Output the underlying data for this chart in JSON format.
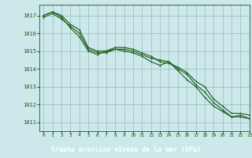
{
  "title": "Graphe pression niveau de la mer (hPa)",
  "background_color": "#cce8ea",
  "plot_bg_color": "#cce8ea",
  "label_bg_color": "#2d6e2d",
  "label_text_color": "#ffffff",
  "grid_color": "#99bbbb",
  "line_color": "#1a5c1a",
  "xlim": [
    -0.5,
    23
  ],
  "ylim": [
    1010.5,
    1017.6
  ],
  "yticks": [
    1011,
    1012,
    1013,
    1014,
    1015,
    1016,
    1017
  ],
  "xticks": [
    0,
    1,
    2,
    3,
    4,
    5,
    6,
    7,
    8,
    9,
    10,
    11,
    12,
    13,
    14,
    15,
    16,
    17,
    18,
    19,
    20,
    21,
    22,
    23
  ],
  "series1": [
    1017.0,
    1017.2,
    1017.0,
    1016.5,
    1016.2,
    1015.2,
    1015.0,
    1015.0,
    1015.2,
    1015.2,
    1015.1,
    1014.9,
    1014.7,
    1014.4,
    1014.3,
    1014.1,
    1013.8,
    1013.3,
    1013.0,
    1012.3,
    1011.9,
    1011.5,
    1011.5,
    1011.4
  ],
  "series2": [
    1016.9,
    1017.1,
    1016.8,
    1016.4,
    1016.0,
    1015.1,
    1014.9,
    1014.9,
    1015.1,
    1015.1,
    1015.0,
    1014.8,
    1014.6,
    1014.5,
    1014.4,
    1014.0,
    1013.7,
    1013.1,
    1012.7,
    1012.1,
    1011.7,
    1011.3,
    1011.4,
    1011.2
  ],
  "series3": [
    1017.0,
    1017.2,
    1016.9,
    1016.3,
    1015.8,
    1015.0,
    1014.8,
    1015.0,
    1015.1,
    1015.0,
    1014.9,
    1014.7,
    1014.4,
    1014.2,
    1014.4,
    1013.9,
    1013.4,
    1013.0,
    1012.4,
    1011.9,
    1011.6,
    1011.3,
    1011.3,
    1011.2
  ],
  "ylabel_fontsize": 5.0,
  "xlabel_fontsize": 6.0
}
